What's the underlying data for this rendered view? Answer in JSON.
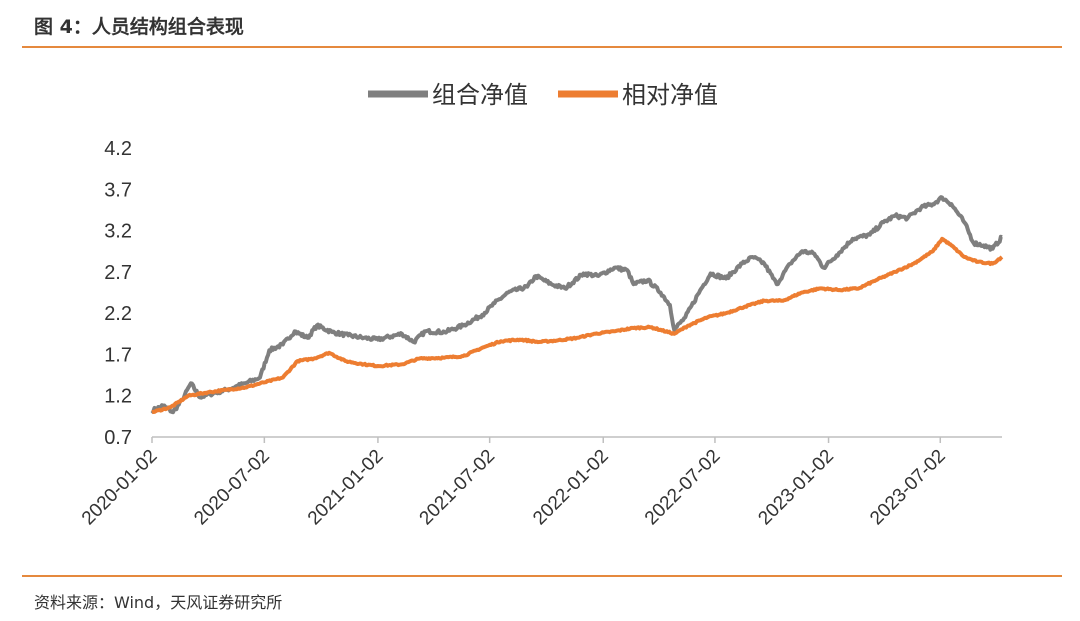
{
  "header": {
    "title": "图 4：人员结构组合表现"
  },
  "footer": {
    "source": "资料来源：Wind，天风证券研究所"
  },
  "colors": {
    "accent": "#e5893e",
    "portfolio": "#7f7f7f",
    "relative": "#ed7d31"
  },
  "chart_data": {
    "type": "line",
    "title": "",
    "xlabel": "",
    "ylabel": "",
    "ylim": [
      0.7,
      4.2
    ],
    "yticks": [
      "0.7",
      "1.2",
      "1.7",
      "2.2",
      "2.7",
      "3.2",
      "3.7",
      "4.2"
    ],
    "xticks": [
      "2020-01-02",
      "2020-07-02",
      "2021-01-02",
      "2021-07-02",
      "2022-01-02",
      "2022-07-02",
      "2023-01-02",
      "2023-07-02"
    ],
    "grid": false,
    "legend": "top",
    "series": [
      {
        "name": "组合净值",
        "color": "#7f7f7f",
        "points": [
          [
            "2020-01-02",
            1.02
          ],
          [
            "2020-01-20",
            1.08
          ],
          [
            "2020-02-05",
            1.0
          ],
          [
            "2020-02-20",
            1.15
          ],
          [
            "2020-03-05",
            1.35
          ],
          [
            "2020-03-20",
            1.18
          ],
          [
            "2020-04-05",
            1.22
          ],
          [
            "2020-05-01",
            1.27
          ],
          [
            "2020-06-01",
            1.35
          ],
          [
            "2020-06-25",
            1.42
          ],
          [
            "2020-07-10",
            1.75
          ],
          [
            "2020-08-01",
            1.82
          ],
          [
            "2020-08-20",
            1.98
          ],
          [
            "2020-09-10",
            1.9
          ],
          [
            "2020-09-25",
            2.05
          ],
          [
            "2020-10-20",
            1.97
          ],
          [
            "2020-11-15",
            1.93
          ],
          [
            "2020-12-10",
            1.9
          ],
          [
            "2021-01-02",
            1.88
          ],
          [
            "2021-02-10",
            1.95
          ],
          [
            "2021-03-01",
            1.85
          ],
          [
            "2021-03-20",
            1.98
          ],
          [
            "2021-04-20",
            1.97
          ],
          [
            "2021-05-20",
            2.05
          ],
          [
            "2021-06-20",
            2.18
          ],
          [
            "2021-07-10",
            2.32
          ],
          [
            "2021-08-01",
            2.45
          ],
          [
            "2021-09-01",
            2.52
          ],
          [
            "2021-09-15",
            2.65
          ],
          [
            "2021-10-10",
            2.55
          ],
          [
            "2021-11-01",
            2.5
          ],
          [
            "2021-12-01",
            2.68
          ],
          [
            "2021-12-25",
            2.65
          ],
          [
            "2022-01-20",
            2.75
          ],
          [
            "2022-02-10",
            2.72
          ],
          [
            "2022-02-20",
            2.55
          ],
          [
            "2022-03-15",
            2.6
          ],
          [
            "2022-04-05",
            2.45
          ],
          [
            "2022-04-20",
            2.3
          ],
          [
            "2022-04-27",
            2.0
          ],
          [
            "2022-05-15",
            2.15
          ],
          [
            "2022-06-10",
            2.5
          ],
          [
            "2022-06-25",
            2.68
          ],
          [
            "2022-07-20",
            2.62
          ],
          [
            "2022-08-15",
            2.8
          ],
          [
            "2022-09-01",
            2.88
          ],
          [
            "2022-09-20",
            2.8
          ],
          [
            "2022-10-10",
            2.55
          ],
          [
            "2022-11-01",
            2.8
          ],
          [
            "2022-11-20",
            2.95
          ],
          [
            "2022-12-10",
            2.92
          ],
          [
            "2022-12-25",
            2.75
          ],
          [
            "2023-01-15",
            2.9
          ],
          [
            "2023-02-10",
            3.1
          ],
          [
            "2023-03-10",
            3.15
          ],
          [
            "2023-04-01",
            3.3
          ],
          [
            "2023-04-20",
            3.38
          ],
          [
            "2023-05-10",
            3.35
          ],
          [
            "2023-06-01",
            3.48
          ],
          [
            "2023-06-20",
            3.52
          ],
          [
            "2023-07-05",
            3.6
          ],
          [
            "2023-07-20",
            3.52
          ],
          [
            "2023-08-10",
            3.3
          ],
          [
            "2023-08-25",
            3.05
          ],
          [
            "2023-09-10",
            3.02
          ],
          [
            "2023-09-25",
            2.98
          ],
          [
            "2023-10-10",
            3.12
          ]
        ]
      },
      {
        "name": "相对净值",
        "color": "#ed7d31",
        "points": [
          [
            "2020-01-02",
            1.0
          ],
          [
            "2020-02-01",
            1.06
          ],
          [
            "2020-03-01",
            1.2
          ],
          [
            "2020-04-01",
            1.24
          ],
          [
            "2020-05-01",
            1.27
          ],
          [
            "2020-06-01",
            1.3
          ],
          [
            "2020-07-01",
            1.36
          ],
          [
            "2020-08-01",
            1.42
          ],
          [
            "2020-08-25",
            1.62
          ],
          [
            "2020-09-20",
            1.65
          ],
          [
            "2020-10-15",
            1.72
          ],
          [
            "2020-11-10",
            1.62
          ],
          [
            "2020-12-10",
            1.58
          ],
          [
            "2021-01-02",
            1.56
          ],
          [
            "2021-02-10",
            1.58
          ],
          [
            "2021-03-10",
            1.65
          ],
          [
            "2021-04-20",
            1.66
          ],
          [
            "2021-05-20",
            1.68
          ],
          [
            "2021-06-20",
            1.78
          ],
          [
            "2021-07-20",
            1.86
          ],
          [
            "2021-08-20",
            1.88
          ],
          [
            "2021-09-20",
            1.85
          ],
          [
            "2021-10-20",
            1.87
          ],
          [
            "2021-11-20",
            1.9
          ],
          [
            "2021-12-20",
            1.95
          ],
          [
            "2022-01-20",
            1.98
          ],
          [
            "2022-02-20",
            2.02
          ],
          [
            "2022-03-20",
            2.03
          ],
          [
            "2022-04-27",
            1.95
          ],
          [
            "2022-05-20",
            2.05
          ],
          [
            "2022-06-20",
            2.15
          ],
          [
            "2022-07-20",
            2.2
          ],
          [
            "2022-08-20",
            2.28
          ],
          [
            "2022-09-20",
            2.35
          ],
          [
            "2022-10-20",
            2.35
          ],
          [
            "2022-11-20",
            2.45
          ],
          [
            "2022-12-20",
            2.5
          ],
          [
            "2023-01-20",
            2.48
          ],
          [
            "2023-02-20",
            2.5
          ],
          [
            "2023-03-20",
            2.6
          ],
          [
            "2023-04-20",
            2.7
          ],
          [
            "2023-05-20",
            2.8
          ],
          [
            "2023-06-20",
            2.95
          ],
          [
            "2023-07-05",
            3.1
          ],
          [
            "2023-07-20",
            3.02
          ],
          [
            "2023-08-10",
            2.88
          ],
          [
            "2023-09-01",
            2.82
          ],
          [
            "2023-09-25",
            2.8
          ],
          [
            "2023-10-10",
            2.88
          ]
        ]
      }
    ]
  }
}
